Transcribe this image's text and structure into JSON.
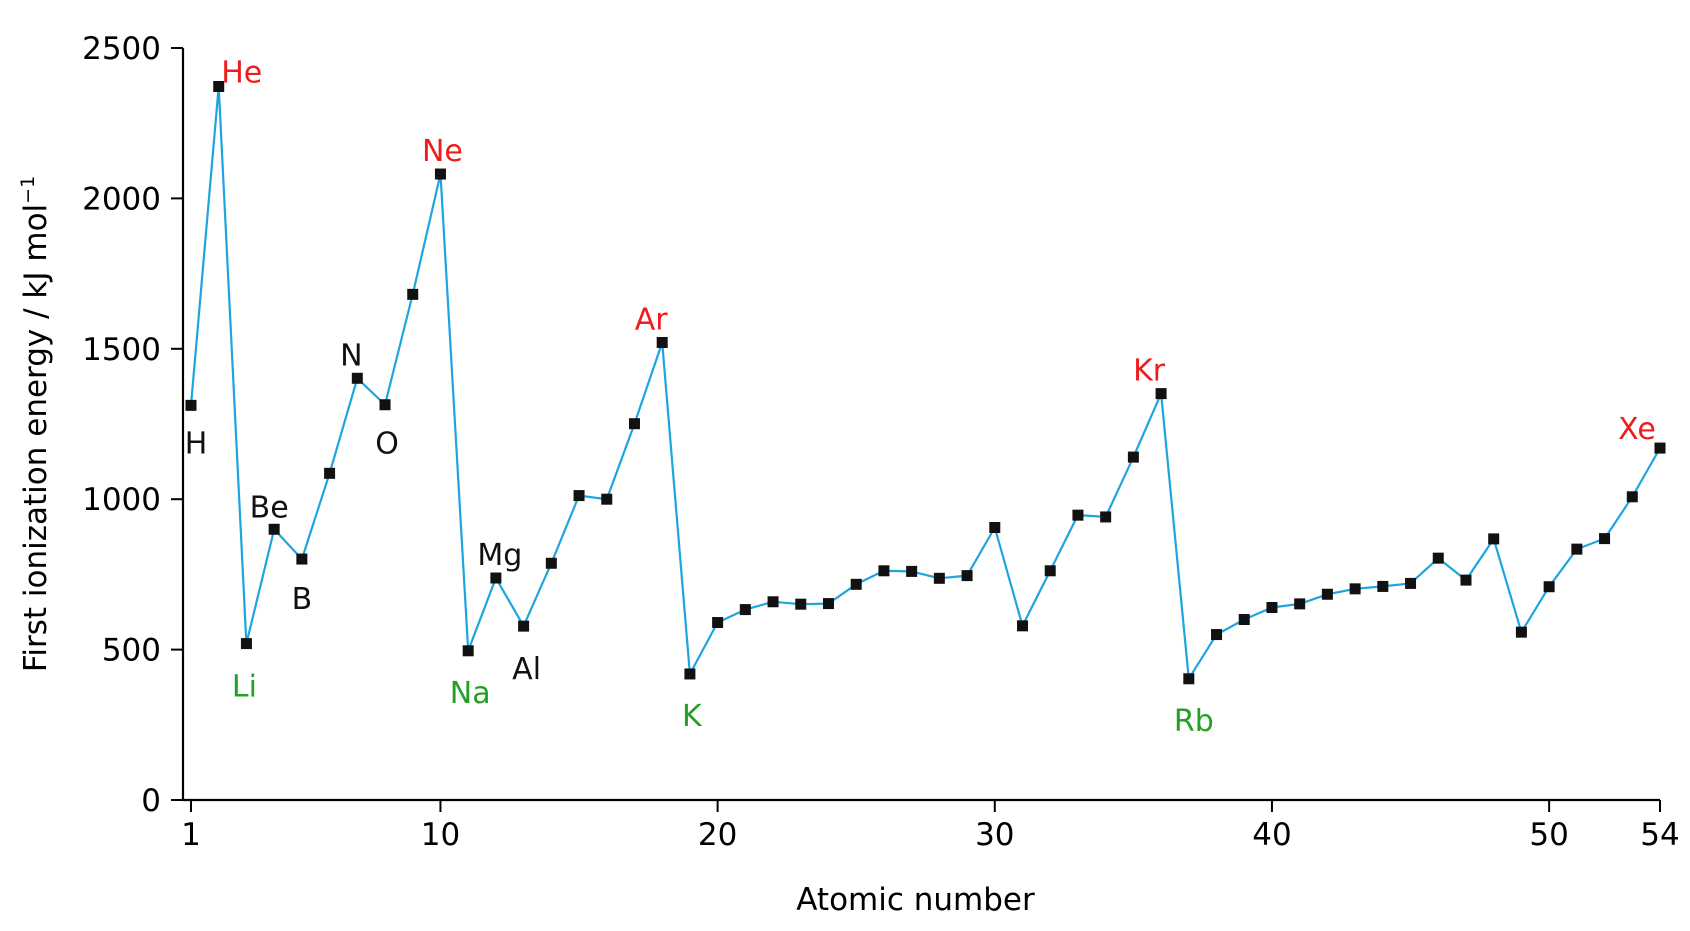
{
  "chart_data": {
    "type": "line",
    "title": "",
    "xlabel": "Atomic number",
    "ylabel": "First ionization energy / kJ mol",
    "ylabel_superscript": "−1",
    "xlim": [
      1,
      54
    ],
    "ylim": [
      0,
      2500
    ],
    "x_ticks": [
      1,
      10,
      20,
      30,
      40,
      50,
      54
    ],
    "y_ticks": [
      0,
      500,
      1000,
      1500,
      2000,
      2500
    ],
    "grid": false,
    "colors": {
      "line": "#1ea5e0",
      "marker": "#111111",
      "noble_gas": "#ee1c1c",
      "alkali_metal": "#24a024",
      "other": "#111111"
    },
    "series": [
      {
        "x": [
          1,
          2,
          3,
          4,
          5,
          6,
          7,
          8,
          9,
          10,
          11,
          12,
          13,
          14,
          15,
          16,
          17,
          18,
          19,
          20,
          21,
          22,
          23,
          24,
          25,
          26,
          27,
          28,
          29,
          30,
          31,
          32,
          33,
          34,
          35,
          36,
          37,
          38,
          39,
          40,
          41,
          42,
          43,
          44,
          45,
          46,
          47,
          48,
          49,
          50,
          51,
          52,
          53,
          54
        ],
        "values": [
          1312,
          2372,
          520,
          900,
          801,
          1086,
          1402,
          1314,
          1681,
          2081,
          496,
          738,
          578,
          787,
          1012,
          1000,
          1251,
          1521,
          419,
          590,
          633,
          659,
          651,
          653,
          717,
          762,
          760,
          737,
          746,
          906,
          579,
          762,
          947,
          941,
          1140,
          1351,
          403,
          550,
          600,
          640,
          652,
          684,
          702,
          710,
          720,
          804,
          731,
          868,
          558,
          709,
          834,
          869,
          1008,
          1170
        ]
      }
    ],
    "annotations": [
      {
        "text": "H",
        "x": 1,
        "group": "other"
      },
      {
        "text": "He",
        "x": 2,
        "group": "noble_gas"
      },
      {
        "text": "Li",
        "x": 3,
        "group": "alkali_metal"
      },
      {
        "text": "Be",
        "x": 4,
        "group": "other"
      },
      {
        "text": "B",
        "x": 5,
        "group": "other"
      },
      {
        "text": "N",
        "x": 7,
        "group": "other"
      },
      {
        "text": "O",
        "x": 8,
        "group": "other"
      },
      {
        "text": "Ne",
        "x": 10,
        "group": "noble_gas"
      },
      {
        "text": "Na",
        "x": 11,
        "group": "alkali_metal"
      },
      {
        "text": "Mg",
        "x": 12,
        "group": "other"
      },
      {
        "text": "Al",
        "x": 13,
        "group": "other"
      },
      {
        "text": "Ar",
        "x": 18,
        "group": "noble_gas"
      },
      {
        "text": "K",
        "x": 19,
        "group": "alkali_metal"
      },
      {
        "text": "Kr",
        "x": 36,
        "group": "noble_gas"
      },
      {
        "text": "Rb",
        "x": 37,
        "group": "alkali_metal"
      },
      {
        "text": "Xe",
        "x": 54,
        "group": "noble_gas"
      }
    ]
  }
}
